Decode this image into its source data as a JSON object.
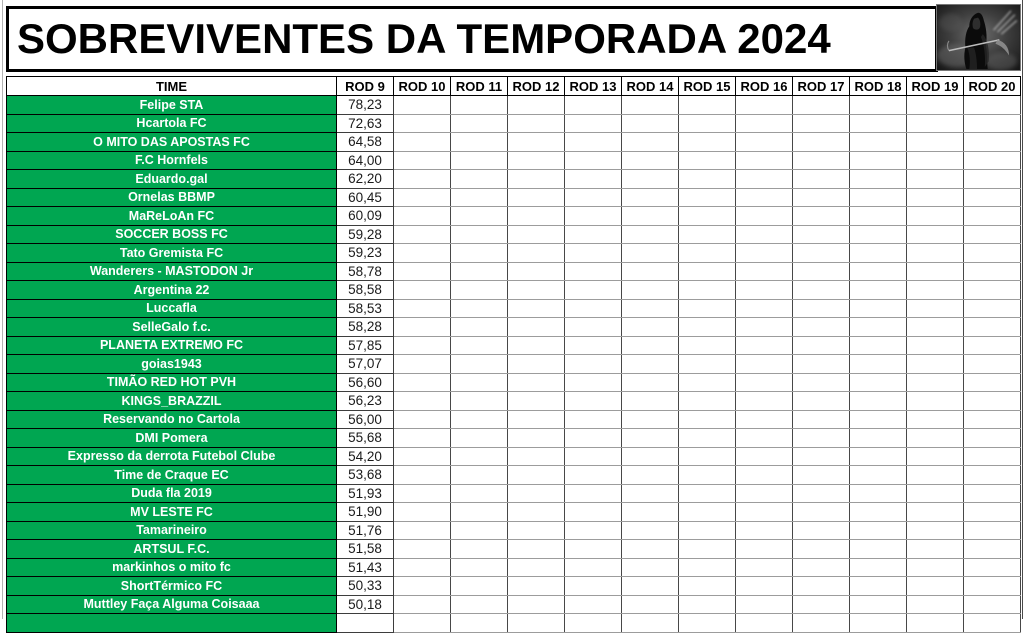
{
  "page": {
    "title": "SOBREVIVENTES DA TEMPORADA 2024"
  },
  "icons": {
    "header_art": "grim-reaper-image"
  },
  "colors": {
    "team_green": "#00a651",
    "grid_light": "#9c9c9c",
    "grid_dark": "#474747",
    "border_black": "#000000",
    "team_text": "#ffffff",
    "score_text": "#1a1a1a"
  },
  "table": {
    "time_header": "TIME",
    "round_headers": [
      "ROD 9",
      "ROD 10",
      "ROD 11",
      "ROD 12",
      "ROD 13",
      "ROD 14",
      "ROD 15",
      "ROD 16",
      "ROD 17",
      "ROD 18",
      "ROD 19",
      "ROD 20"
    ],
    "rows": [
      {
        "team": "Felipe STA",
        "rod9": "78,23"
      },
      {
        "team": "Hcartola FC",
        "rod9": "72,63"
      },
      {
        "team": "O MITO DAS APOSTAS FC",
        "rod9": "64,58"
      },
      {
        "team": "F.C Hornfels",
        "rod9": "64,00"
      },
      {
        "team": "Eduardo.gal",
        "rod9": "62,20"
      },
      {
        "team": "Ornelas BBMP",
        "rod9": "60,45"
      },
      {
        "team": "MaReLoAn FC",
        "rod9": "60,09"
      },
      {
        "team": "SOCCER BOSS FC",
        "rod9": "59,28"
      },
      {
        "team": "Tato Gremista FC",
        "rod9": "59,23"
      },
      {
        "team": "Wanderers - MASTODON Jr",
        "rod9": "58,78"
      },
      {
        "team": "Argentina 22",
        "rod9": "58,58"
      },
      {
        "team": "Luccafla",
        "rod9": "58,53"
      },
      {
        "team": "SelleGalo f.c.",
        "rod9": "58,28"
      },
      {
        "team": "PLANETA EXTREMO FC",
        "rod9": "57,85"
      },
      {
        "team": "goias1943",
        "rod9": "57,07"
      },
      {
        "team": "TIMÃO RED HOT PVH",
        "rod9": "56,60"
      },
      {
        "team": "KINGS_BRAZZIL",
        "rod9": "56,23"
      },
      {
        "team": "Reservando no Cartola",
        "rod9": "56,00"
      },
      {
        "team": "DMI Pomera",
        "rod9": "55,68"
      },
      {
        "team": "Expresso da derrota Futebol Clube",
        "rod9": "54,20"
      },
      {
        "team": "Time de Craque EC",
        "rod9": "53,68"
      },
      {
        "team": "Duda fla 2019",
        "rod9": "51,93"
      },
      {
        "team": "MV LESTE FC",
        "rod9": "51,90"
      },
      {
        "team": "Tamarineiro",
        "rod9": "51,76"
      },
      {
        "team": "ARTSUL F.C.",
        "rod9": "51,58"
      },
      {
        "team": "markinhos o mito fc",
        "rod9": "51,43"
      },
      {
        "team": "ShortTérmico FC",
        "rod9": "50,33"
      },
      {
        "team": "Muttley Faça Alguma Coisaaa",
        "rod9": "50,18"
      }
    ]
  }
}
